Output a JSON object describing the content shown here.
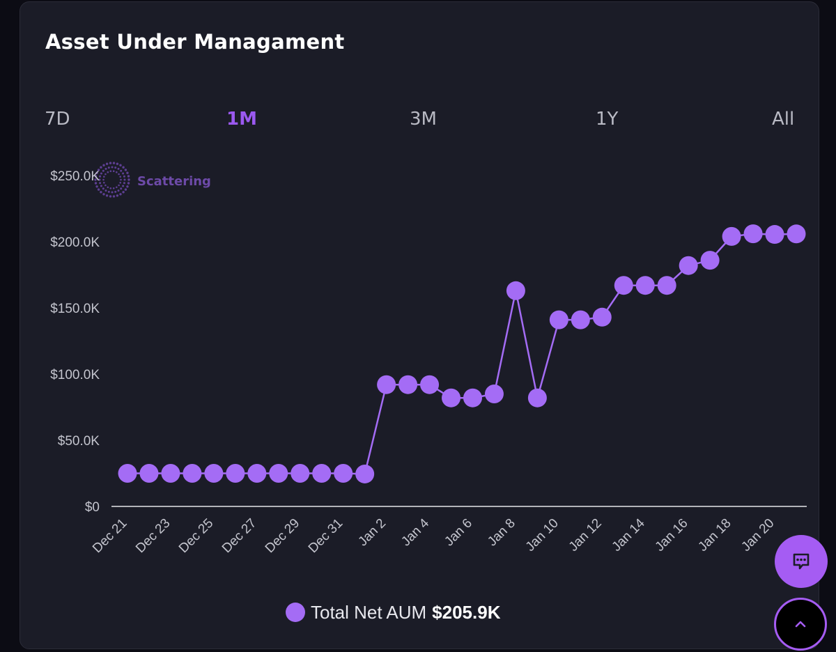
{
  "card": {
    "title": "Asset Under Managament"
  },
  "range_tabs": [
    {
      "label": "7D",
      "active": false
    },
    {
      "label": "1M",
      "active": true
    },
    {
      "label": "3M",
      "active": false
    },
    {
      "label": "1Y",
      "active": false
    },
    {
      "label": "All",
      "active": false
    }
  ],
  "watermark": {
    "text": "Scattering"
  },
  "legend": {
    "label": "Total Net AUM",
    "value": "$205.9K"
  },
  "icons": {
    "chat": "chat-bubble-icon",
    "scroll_top": "chevron-up-icon",
    "watermark": "dotted-circle-logo"
  },
  "colors": {
    "series": "#a46cf5",
    "accent": "#9b59f0",
    "background": "#1b1c27"
  },
  "chart_data": {
    "type": "line",
    "x": [
      "Dec 21",
      "Dec 22",
      "Dec 23",
      "Dec 24",
      "Dec 25",
      "Dec 26",
      "Dec 27",
      "Dec 28",
      "Dec 29",
      "Dec 30",
      "Dec 31",
      "Jan 1",
      "Jan 2",
      "Jan 3",
      "Jan 4",
      "Jan 5",
      "Jan 6",
      "Jan 7",
      "Jan 8",
      "Jan 9",
      "Jan 10",
      "Jan 11",
      "Jan 12",
      "Jan 13",
      "Jan 14",
      "Jan 15",
      "Jan 16",
      "Jan 17",
      "Jan 18",
      "Jan 19",
      "Jan 20",
      "Jan 21"
    ],
    "x_tick_labels": [
      "Dec 21",
      "Dec 23",
      "Dec 25",
      "Dec 27",
      "Dec 29",
      "Dec 31",
      "Jan 2",
      "Jan 4",
      "Jan 6",
      "Jan 8",
      "Jan 10",
      "Jan 12",
      "Jan 14",
      "Jan 16",
      "Jan 18",
      "Jan 20"
    ],
    "series": [
      {
        "name": "Total Net AUM",
        "values": [
          25000,
          25000,
          25000,
          25000,
          25000,
          25000,
          25000,
          25000,
          25000,
          25000,
          25000,
          24500,
          92000,
          92000,
          92000,
          82000,
          82000,
          85000,
          163000,
          82000,
          141000,
          141000,
          143000,
          167000,
          167000,
          167000,
          182000,
          186000,
          204000,
          206000,
          205500,
          205900
        ]
      }
    ],
    "y_ticks": [
      0,
      50000,
      100000,
      150000,
      200000,
      250000
    ],
    "y_tick_labels": [
      "$0",
      "$50.0K",
      "$100.0K",
      "$150.0K",
      "$200.0K",
      "$250.0K"
    ],
    "ylim": [
      0,
      250000
    ],
    "grid": false,
    "legend_position": "bottom-center"
  }
}
